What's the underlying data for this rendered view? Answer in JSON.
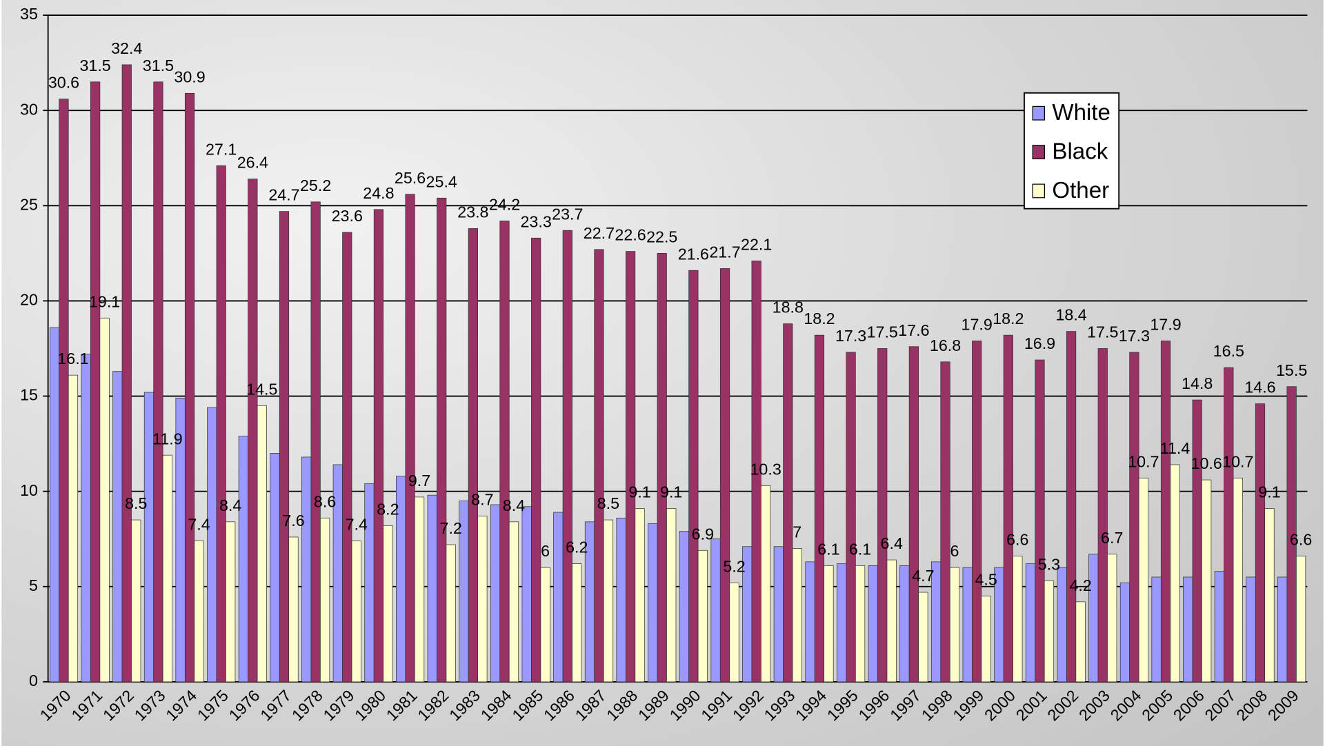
{
  "chart_data": {
    "type": "bar",
    "categories": [
      "1970",
      "1971",
      "1972",
      "1973",
      "1974",
      "1975",
      "1976",
      "1977",
      "1978",
      "1979",
      "1980",
      "1981",
      "1982",
      "1983",
      "1984",
      "1985",
      "1986",
      "1987",
      "1988",
      "1989",
      "1990",
      "1991",
      "1992",
      "1993",
      "1994",
      "1995",
      "1996",
      "1997",
      "1998",
      "1999",
      "2000",
      "2001",
      "2002",
      "2003",
      "2004",
      "2005",
      "2006",
      "2007",
      "2008",
      "2009"
    ],
    "series": [
      {
        "name": "White",
        "color": "#9999ff",
        "values": [
          18.6,
          17.2,
          16.3,
          15.2,
          14.9,
          14.4,
          12.9,
          12.0,
          11.8,
          11.4,
          10.4,
          10.8,
          9.8,
          9.5,
          9.3,
          9.2,
          8.9,
          8.4,
          8.6,
          8.3,
          7.9,
          7.5,
          7.1,
          7.1,
          6.3,
          6.2,
          6.1,
          6.1,
          6.3,
          6.0,
          6.0,
          6.2,
          6.0,
          6.7,
          5.2,
          5.5,
          5.5,
          5.8,
          5.5,
          5.5
        ]
      },
      {
        "name": "Black",
        "color": "#993366",
        "values": [
          30.6,
          31.5,
          32.4,
          31.5,
          30.9,
          27.1,
          26.4,
          24.7,
          25.2,
          23.6,
          24.8,
          25.6,
          25.4,
          23.8,
          24.2,
          23.3,
          23.7,
          22.7,
          22.6,
          22.5,
          21.6,
          21.7,
          22.1,
          18.8,
          18.2,
          17.3,
          17.5,
          17.6,
          16.8,
          17.9,
          18.2,
          16.9,
          18.4,
          17.5,
          17.3,
          17.9,
          14.8,
          16.5,
          14.6,
          15.5
        ]
      },
      {
        "name": "Other",
        "color": "#ffffcc",
        "values": [
          16.1,
          19.1,
          8.5,
          11.9,
          7.4,
          8.4,
          14.5,
          7.6,
          8.6,
          7.4,
          8.2,
          9.7,
          7.2,
          8.7,
          8.4,
          6,
          6.2,
          8.5,
          9.1,
          9.1,
          6.9,
          5.2,
          10.3,
          7,
          6.1,
          6.1,
          6.4,
          4.7,
          6,
          4.5,
          6.6,
          5.3,
          4.2,
          6.7,
          10.7,
          11.4,
          10.6,
          10.7,
          9.1,
          6.6
        ]
      }
    ],
    "labeled_series": [
      1,
      2
    ],
    "ylim": [
      0,
      35
    ],
    "yticks": [
      0,
      5,
      10,
      15,
      20,
      25,
      30,
      35
    ],
    "grid": true,
    "legend": "top-right"
  }
}
